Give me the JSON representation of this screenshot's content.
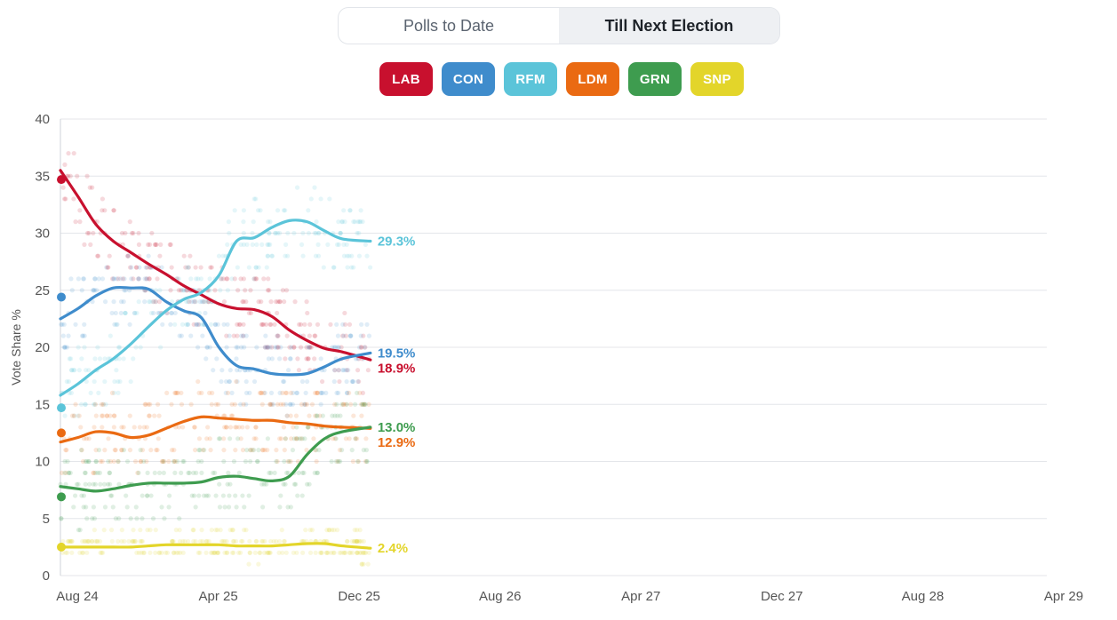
{
  "toggle": {
    "polls_to_date": "Polls to Date",
    "till_next_election": "Till Next Election"
  },
  "parties": [
    {
      "code": "LAB",
      "color": "#c8102e"
    },
    {
      "code": "CON",
      "color": "#3f8ccc"
    },
    {
      "code": "RFM",
      "color": "#5bc4d9"
    },
    {
      "code": "LDM",
      "color": "#ea6a12"
    },
    {
      "code": "GRN",
      "color": "#3e9c4f"
    },
    {
      "code": "SNP",
      "color": "#e3d52a"
    }
  ],
  "chart_data": {
    "type": "line",
    "title": "",
    "xlabel": "",
    "ylabel": "Vote Share %",
    "ylim": [
      0,
      40
    ],
    "yticks": [
      0,
      5,
      10,
      15,
      20,
      25,
      30,
      35,
      40
    ],
    "xlim": [
      0,
      56
    ],
    "x_unit": "months since Aug 2024",
    "xticks": [
      {
        "value": 0,
        "label": "Aug 24"
      },
      {
        "value": 8,
        "label": "Apr 25"
      },
      {
        "value": 16,
        "label": "Dec 25"
      },
      {
        "value": 24,
        "label": "Aug 26"
      },
      {
        "value": 32,
        "label": "Apr 27"
      },
      {
        "value": 40,
        "label": "Dec 27"
      },
      {
        "value": 48,
        "label": "Aug 28"
      },
      {
        "value": 56,
        "label": "Apr 29"
      }
    ],
    "grid": true,
    "series": [
      {
        "name": "LAB",
        "color": "#c8102e",
        "election_result": 34.7,
        "end_label": "18.9%",
        "x": [
          0,
          1,
          2,
          3,
          4,
          5,
          6,
          7,
          8,
          9,
          10,
          11,
          12,
          13,
          14,
          15,
          16,
          17.6
        ],
        "values": [
          35.5,
          33.2,
          30.8,
          29.3,
          28.3,
          27.3,
          26.4,
          25.4,
          24.6,
          23.8,
          23.4,
          23.3,
          22.7,
          21.5,
          20.6,
          19.9,
          19.6,
          18.9
        ]
      },
      {
        "name": "CON",
        "color": "#3f8ccc",
        "election_result": 24.4,
        "end_label": "19.5%",
        "x": [
          0,
          1,
          2,
          3,
          4,
          5,
          6,
          7,
          8,
          9,
          10,
          11,
          12,
          13,
          14,
          15,
          16,
          17.6
        ],
        "values": [
          22.5,
          23.4,
          24.5,
          25.2,
          25.2,
          25.1,
          24.0,
          23.2,
          22.6,
          20.0,
          18.4,
          18.1,
          17.7,
          17.6,
          17.7,
          18.3,
          19.0,
          19.5
        ]
      },
      {
        "name": "RFM",
        "color": "#5bc4d9",
        "election_result": 14.7,
        "end_label": "29.3%",
        "x": [
          0,
          1,
          2,
          3,
          4,
          5,
          6,
          7,
          8,
          9,
          10,
          11,
          12,
          13,
          14,
          15,
          16,
          17.6
        ],
        "values": [
          15.8,
          16.8,
          18.0,
          19.0,
          20.3,
          21.8,
          23.2,
          24.2,
          24.8,
          26.3,
          29.3,
          29.6,
          30.5,
          31.1,
          31.0,
          30.2,
          29.5,
          29.3
        ]
      },
      {
        "name": "LDM",
        "color": "#ea6a12",
        "election_result": 12.5,
        "end_label": "12.9%",
        "x": [
          0,
          1,
          2,
          3,
          4,
          5,
          6,
          7,
          8,
          9,
          10,
          11,
          12,
          13,
          14,
          15,
          16,
          17.6
        ],
        "values": [
          11.7,
          12.1,
          12.6,
          12.5,
          12.1,
          12.3,
          12.9,
          13.5,
          13.9,
          13.8,
          13.7,
          13.6,
          13.6,
          13.4,
          13.3,
          13.1,
          13.0,
          12.9
        ]
      },
      {
        "name": "GRN",
        "color": "#3e9c4f",
        "election_result": 6.9,
        "end_label": "13.0%",
        "x": [
          0,
          1,
          2,
          3,
          4,
          5,
          6,
          7,
          8,
          9,
          10,
          11,
          12,
          13,
          14,
          15,
          16,
          17.6
        ],
        "values": [
          7.8,
          7.6,
          7.4,
          7.6,
          7.9,
          8.1,
          8.1,
          8.1,
          8.2,
          8.6,
          8.7,
          8.5,
          8.3,
          8.7,
          10.6,
          12.0,
          12.6,
          13.0
        ]
      },
      {
        "name": "SNP",
        "color": "#e3d52a",
        "election_result": 2.5,
        "end_label": "2.4%",
        "x": [
          0,
          1,
          2,
          3,
          4,
          5,
          6,
          7,
          8,
          9,
          10,
          11,
          12,
          13,
          14,
          15,
          16,
          17.6
        ],
        "values": [
          2.5,
          2.5,
          2.5,
          2.5,
          2.5,
          2.6,
          2.7,
          2.7,
          2.7,
          2.7,
          2.6,
          2.6,
          2.6,
          2.7,
          2.8,
          2.8,
          2.6,
          2.4
        ]
      }
    ]
  }
}
